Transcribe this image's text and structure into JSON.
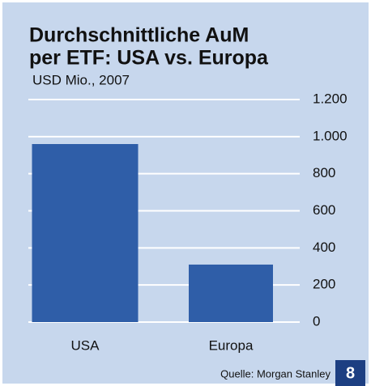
{
  "chart_data": {
    "type": "bar",
    "title": [
      "Durchschnittliche AuM",
      "per ETF: USA vs. Europa"
    ],
    "subtitle": "USD Mio., 2007",
    "categories": [
      "USA",
      "Europa"
    ],
    "values": [
      960,
      310
    ],
    "color": "#2f5ea8",
    "ylim": [
      0,
      1200
    ],
    "yticks": [
      0,
      200,
      400,
      600,
      800,
      {
        "value": 1000,
        "label": "1.000"
      },
      {
        "value": 1200,
        "label": "1.200"
      }
    ],
    "grid": true,
    "source": "Quelle: Morgan Stanley",
    "page_number": "8"
  }
}
